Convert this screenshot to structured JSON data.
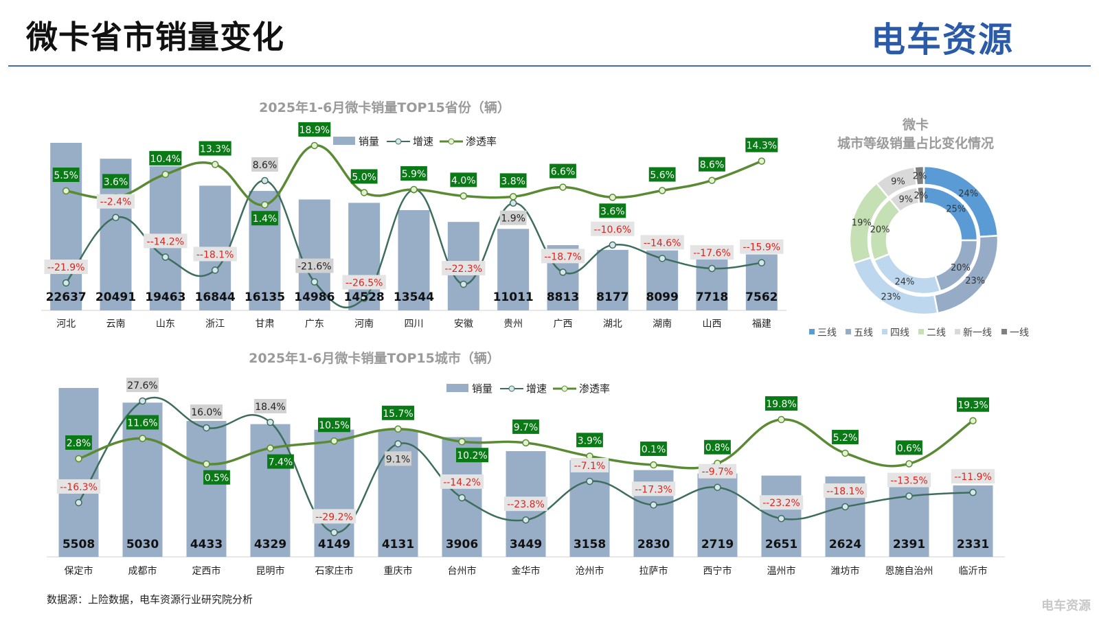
{
  "header": {
    "title": "微卡省市销量变化",
    "logo": "电车资源",
    "watermark": "电车资源行业研究院"
  },
  "footer": {
    "source": "数据源：上险数据，电车资源行业研究院分析",
    "logo": "电车资源"
  },
  "colors": {
    "bar": "#98adc6",
    "growth_line": "#3d6e5d",
    "penetration_line": "#5a8a33",
    "pen_label_bg": "#0a7a16",
    "neg_label_text": "#e0221c",
    "pos_label_bg": "#d2d2d2"
  },
  "chart_data": [
    {
      "type": "bar",
      "title": "2025年1-6月微卡销量TOP15省份（辆）",
      "legend": [
        "销量",
        "增速",
        "渗透率"
      ],
      "legend_position": "top-center",
      "categories": [
        "河北",
        "云南",
        "山东",
        "浙江",
        "甘肃",
        "广东",
        "河南",
        "四川",
        "安徽",
        "贵州",
        "广西",
        "湖北",
        "湖南",
        "山西",
        "福建"
      ],
      "series": [
        {
          "name": "销量",
          "type": "bar",
          "values": [
            22637,
            20491,
            19463,
            16844,
            16135,
            14986,
            14528,
            13544,
            11950,
            11011,
            8813,
            8177,
            8099,
            7718,
            7562
          ],
          "labels": [
            "22637",
            "20491",
            "19463",
            "16844",
            "16135",
            "14986",
            "14528",
            "13544",
            "",
            "11011",
            "8813",
            "8177",
            "8099",
            "7718",
            "7562"
          ]
        },
        {
          "name": "增速",
          "type": "line",
          "values": [
            -21.9,
            -2.4,
            -14.2,
            -18.1,
            8.6,
            -21.6,
            -26.5,
            5.9,
            -22.3,
            1.9,
            -18.7,
            -10.6,
            -14.6,
            -17.6,
            -15.9
          ],
          "labels": [
            "--21.9%",
            "--2.4%",
            "--14.2%",
            "--18.1%",
            "8.6%",
            "-21.6%",
            "--26.5%",
            "",
            "--22.3%",
            "1.9%",
            "--18.7%",
            "--10.6%",
            "--14.6%",
            "--17.6%",
            "--15.9%"
          ]
        },
        {
          "name": "渗透率",
          "type": "line",
          "values": [
            5.5,
            3.6,
            10.4,
            13.3,
            1.4,
            18.9,
            5.0,
            5.9,
            4.0,
            3.8,
            6.6,
            3.6,
            5.6,
            8.6,
            14.3
          ],
          "labels": [
            "5.5%",
            "3.6%",
            "10.4%",
            "13.3%",
            "1.4%",
            "18.9%",
            "5.0%",
            "5.9%",
            "4.0%",
            "3.8%",
            "6.6%",
            "3.6%",
            "5.6%",
            "8.6%",
            "14.3%"
          ]
        }
      ]
    },
    {
      "type": "bar",
      "title": "2025年1-6月微卡销量TOP15城市（辆）",
      "legend": [
        "销量",
        "增速",
        "渗透率"
      ],
      "legend_position": "top-center",
      "categories": [
        "保定市",
        "成都市",
        "定西市",
        "昆明市",
        "石家庄市",
        "重庆市",
        "台州市",
        "金华市",
        "沧州市",
        "拉萨市",
        "西宁市",
        "温州市",
        "潍坊市",
        "恩施自治州",
        "临沂市"
      ],
      "series": [
        {
          "name": "销量",
          "type": "bar",
          "values": [
            5508,
            5030,
            4433,
            4329,
            4149,
            4131,
            3906,
            3449,
            3158,
            2830,
            2719,
            2651,
            2624,
            2391,
            2331
          ],
          "labels": [
            "5508",
            "5030",
            "4433",
            "4329",
            "4149",
            "4131",
            "3906",
            "3449",
            "3158",
            "2830",
            "2719",
            "2651",
            "2624",
            "2391",
            "2331"
          ]
        },
        {
          "name": "增速",
          "type": "line",
          "values": [
            -16.3,
            27.6,
            16.0,
            18.4,
            -29.2,
            9.1,
            -14.2,
            -23.8,
            -7.1,
            -17.3,
            -9.7,
            -23.2,
            -18.1,
            -13.5,
            -11.9
          ],
          "labels": [
            "--16.3%",
            "27.6%",
            "16.0%",
            "18.4%",
            "--29.2%",
            "9.1%",
            "--14.2%",
            "--23.8%",
            "--7.1%",
            "--17.3%",
            "--9.7%",
            "--23.2%",
            "--18.1%",
            "--13.5%",
            "--11.9%"
          ]
        },
        {
          "name": "渗透率",
          "type": "line",
          "values": [
            2.8,
            11.6,
            0.5,
            7.4,
            10.5,
            15.7,
            10.2,
            9.7,
            3.9,
            0.1,
            0.8,
            19.8,
            5.2,
            0.6,
            19.3
          ],
          "labels": [
            "2.8%",
            "11.6%",
            "0.5%",
            "7.4%",
            "10.5%",
            "15.7%",
            "10.2%",
            "9.7%",
            "3.9%",
            "0.1%",
            "0.8%",
            "19.8%",
            "5.2%",
            "0.6%",
            "19.3%"
          ]
        }
      ]
    },
    {
      "type": "pie",
      "subtype": "double-donut",
      "title": "微卡",
      "subtitle": "城市等级销量占比变化情况",
      "categories": [
        "三线",
        "五线",
        "四线",
        "二线",
        "新一线",
        "一线"
      ],
      "colors": [
        "#5b9bd5",
        "#95abc6",
        "#bdd7ee",
        "#c5e0b4",
        "#d9d9d9",
        "#7f7f7f"
      ],
      "legend_position": "bottom",
      "series": [
        {
          "name": "outer",
          "values": [
            24,
            23,
            23,
            19,
            9,
            2
          ]
        },
        {
          "name": "inner",
          "values": [
            25,
            20,
            24,
            20,
            9,
            2
          ]
        }
      ]
    }
  ]
}
